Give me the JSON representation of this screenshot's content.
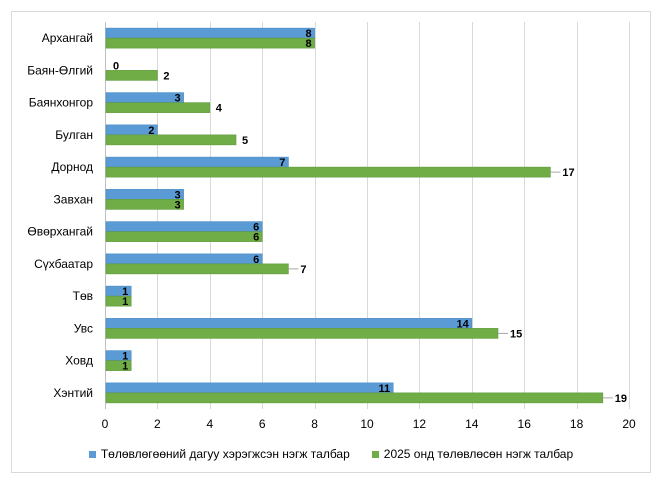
{
  "chart_data": {
    "type": "bar",
    "orientation": "horizontal",
    "categories": [
      "Архангай",
      "Баян-Өлгий",
      "Баянхонгор",
      "Булган",
      "Дорнод",
      "Завхан",
      "Өвөрхангай",
      "Сүхбаатар",
      "Төв",
      "Увс",
      "Ховд",
      "Хэнтий"
    ],
    "series": [
      {
        "name": "Төлөвлөгөөний дагуу хэрэгжсэн нэгж талбар",
        "color": "#5b9bd5",
        "values": [
          8,
          0,
          3,
          2,
          7,
          3,
          6,
          6,
          1,
          14,
          1,
          11
        ]
      },
      {
        "name": "2025 онд төлөвлөсөн нэгж талбар",
        "color": "#70ad47",
        "values": [
          8,
          2,
          4,
          5,
          17,
          3,
          6,
          7,
          1,
          15,
          1,
          19
        ]
      }
    ],
    "xlim": [
      0,
      20
    ],
    "xticks": [
      "0",
      "2",
      "4",
      "6",
      "8",
      "10",
      "12",
      "14",
      "16",
      "18",
      "20"
    ],
    "grid": true,
    "data_labels": true,
    "legend": "bottom"
  }
}
